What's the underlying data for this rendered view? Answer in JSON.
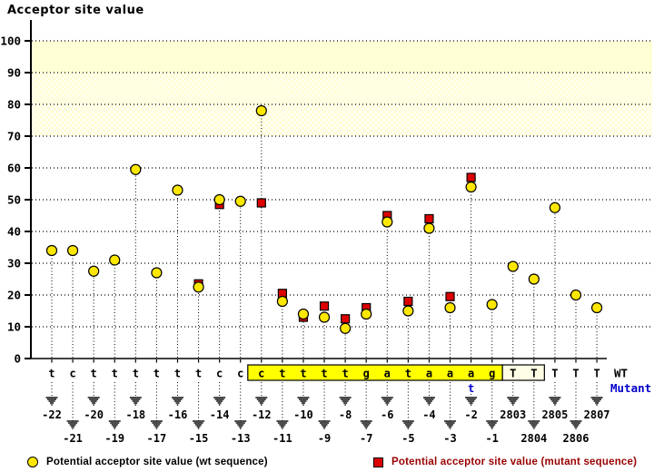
{
  "title": "Acceptor site value",
  "legend": {
    "wt": "Potential acceptor site value (wt sequence)",
    "mutant": "Potential acceptor site value (mutant sequence)"
  },
  "colors": {
    "background": "#FFFFFF",
    "band_yellow": "#FFFFD6",
    "sequence_box_yellow": "#FFFF00",
    "tt_box_cream": "#FFFFE6",
    "mutant_blue": "#0000CC",
    "wt_marker_yellow": "#FFE800",
    "mutant_marker_red": "#DD0000",
    "legend_mutant_text": "#990000",
    "axis_black": "#000000"
  },
  "chart_data": {
    "type": "scatter",
    "title": "Acceptor site value",
    "ylabel": "Acceptor site value",
    "xlabel": "",
    "ylim": [
      0,
      100
    ],
    "y_ticks": [
      0,
      10,
      20,
      30,
      40,
      50,
      60,
      70,
      80,
      90,
      100
    ],
    "grid": "horizontal-dotted",
    "legend_position": "bottom",
    "bands": [
      {
        "from": 90,
        "to": 100,
        "style": "solid"
      },
      {
        "from": 80,
        "to": 90,
        "style": "dense-crosshatch"
      },
      {
        "from": 70,
        "to": 80,
        "style": "light-crosshatch"
      }
    ],
    "categories": [
      "-22",
      "-21",
      "-20",
      "-19",
      "-18",
      "-17",
      "-16",
      "-15",
      "-14",
      "-13",
      "-12",
      "-11",
      "-10",
      "-9",
      "-8",
      "-7",
      "-6",
      "-5",
      "-4",
      "-3",
      "-2",
      "-1",
      "2803",
      "2804",
      "2805",
      "2806",
      "2807"
    ],
    "wt_sequence": [
      "t",
      "c",
      "t",
      "t",
      "t",
      "t",
      "t",
      "t",
      "c",
      "c",
      "c",
      "t",
      "t",
      "t",
      "t",
      "g",
      "a",
      "t",
      "a",
      "a",
      "a",
      "g",
      "T",
      "T",
      "T",
      "T",
      "T"
    ],
    "mutation": {
      "position": "-2",
      "wt_base": "a",
      "mutant_base": "t"
    },
    "highlight_box": {
      "from": "-12",
      "to": "-1"
    },
    "secondary_box": {
      "from": "2803",
      "to": "2804"
    },
    "row_labels": {
      "wt": "WT",
      "mutant": "Mutant"
    },
    "series": [
      {
        "name": "Potential acceptor site value (wt sequence)",
        "marker": "circle",
        "values": [
          34,
          34,
          27.5,
          31,
          59.5,
          27,
          53,
          22.5,
          50,
          49.5,
          78,
          18,
          14,
          13,
          9.5,
          14,
          43,
          15,
          41,
          16,
          54,
          17,
          29,
          25,
          47.5,
          20,
          16
        ]
      },
      {
        "name": "Potential acceptor site value (mutant sequence)",
        "marker": "square",
        "values": [
          null,
          null,
          null,
          null,
          null,
          null,
          null,
          23.5,
          48.5,
          null,
          49,
          20.5,
          13,
          16.5,
          12.5,
          16,
          45,
          18,
          44,
          19.5,
          57,
          null,
          null,
          null,
          null,
          null,
          null
        ]
      }
    ]
  }
}
